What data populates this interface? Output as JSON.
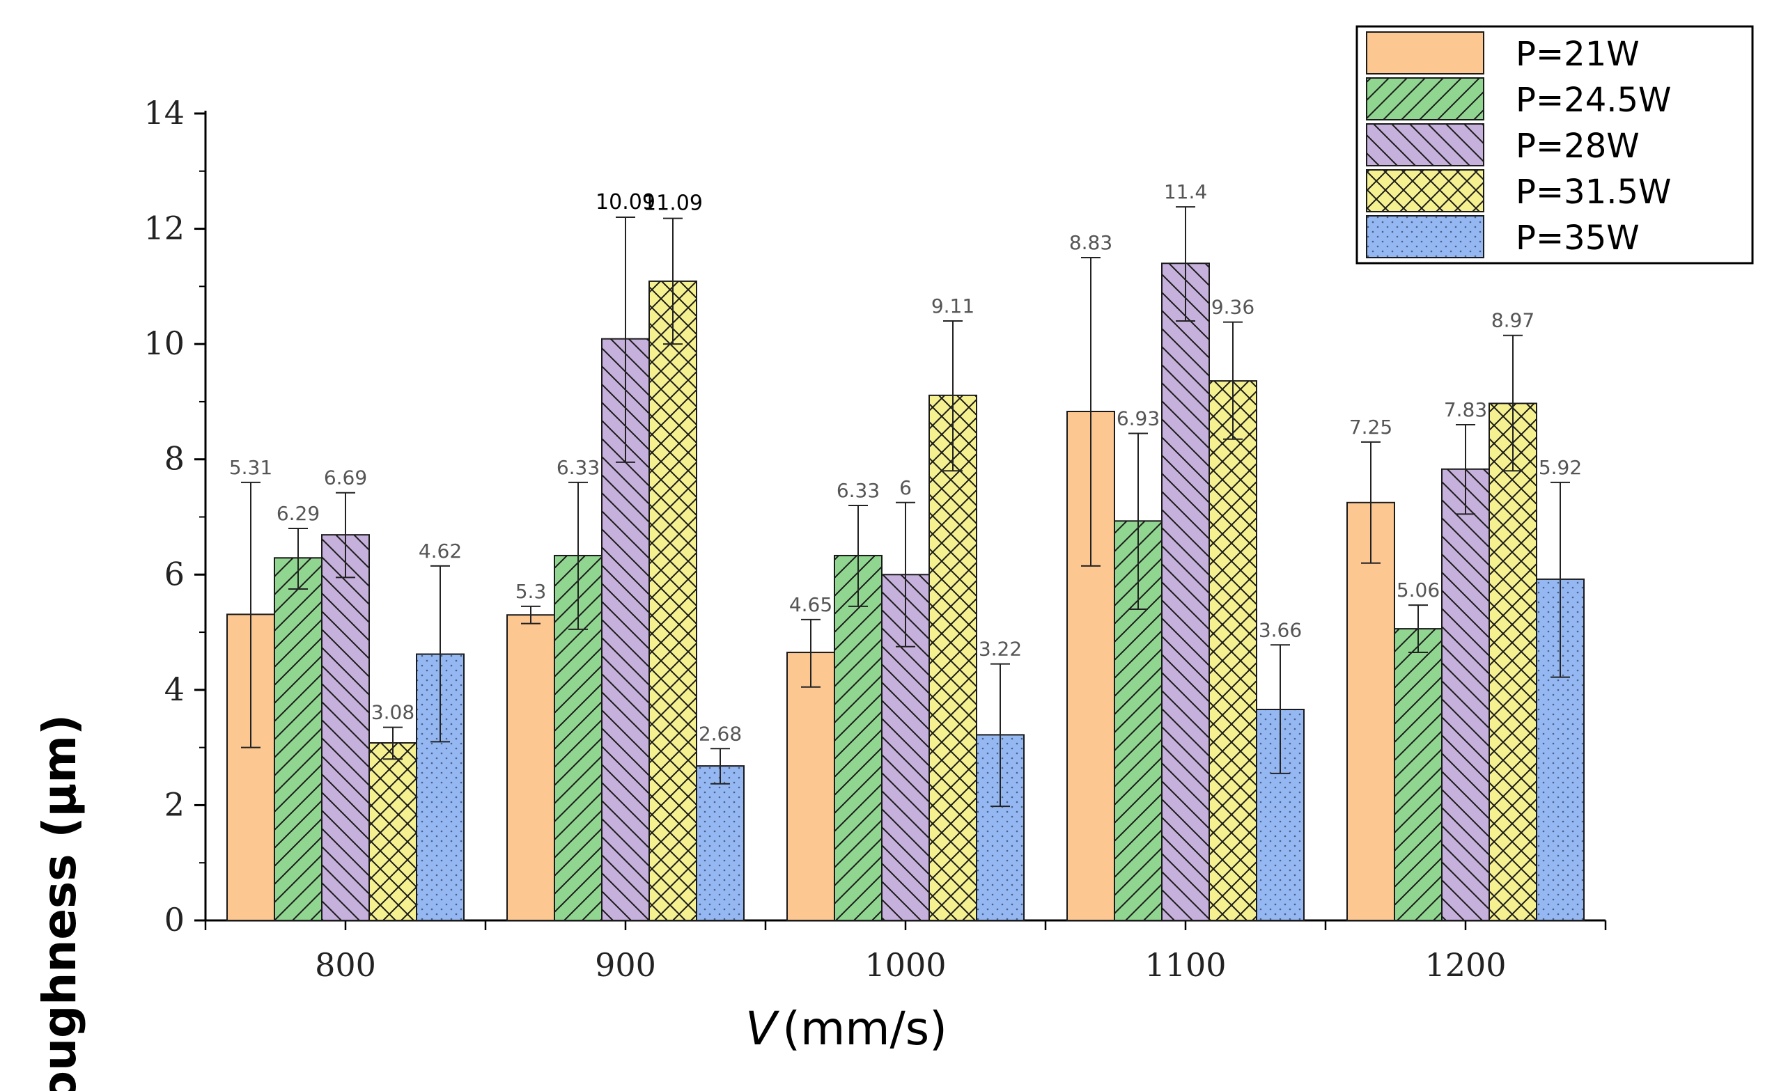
{
  "chart_data": {
    "type": "bar",
    "title": "",
    "xlabel_var": "V",
    "xlabel_unit": "(mm/s)",
    "ylabel": "Roughness (μm)",
    "ylim": [
      0,
      14
    ],
    "yticks": [
      "0",
      "2",
      "4",
      "6",
      "8",
      "10",
      "12",
      "14"
    ],
    "categories": [
      "800",
      "900",
      "1000",
      "1100",
      "1200"
    ],
    "grid": false,
    "legend_position": "top-right",
    "series": [
      {
        "name": "P=21W",
        "color": "#fcc790",
        "pattern": "none",
        "values": [
          5.31,
          5.3,
          4.65,
          8.83,
          7.25
        ],
        "labels": [
          "5.31",
          "5.3",
          "4.65",
          "8.83",
          "7.25"
        ],
        "error_low": [
          3.0,
          5.15,
          4.05,
          6.15,
          6.2
        ],
        "error_high": [
          7.6,
          5.45,
          5.22,
          11.5,
          8.3
        ]
      },
      {
        "name": "P=24.5W",
        "color": "#90d690",
        "pattern": "diag-right",
        "values": [
          6.29,
          6.33,
          6.33,
          6.93,
          5.06
        ],
        "labels": [
          "6.29",
          "6.33",
          "6.33",
          "6.93",
          "5.06"
        ],
        "error_low": [
          5.75,
          5.05,
          5.45,
          5.4,
          4.65
        ],
        "error_high": [
          6.8,
          7.6,
          7.2,
          8.45,
          5.47
        ]
      },
      {
        "name": "P=28W",
        "color": "#c6b0dc",
        "pattern": "diag-left",
        "values": [
          6.69,
          10.09,
          6.0,
          11.4,
          7.83
        ],
        "labels": [
          "6.69",
          "10.09",
          "6",
          "11.4",
          "7.83"
        ],
        "error_low": [
          5.95,
          7.95,
          4.75,
          10.4,
          7.05
        ],
        "error_high": [
          7.42,
          12.2,
          7.25,
          12.38,
          8.6
        ]
      },
      {
        "name": "P=31.5W",
        "color": "#f5f190",
        "pattern": "cross",
        "values": [
          3.08,
          11.09,
          9.11,
          9.36,
          8.97
        ],
        "labels": [
          "3.08",
          "11.09",
          "9.11",
          "9.36",
          "8.97"
        ],
        "error_low": [
          2.8,
          10.0,
          7.8,
          8.35,
          7.8
        ],
        "error_high": [
          3.35,
          12.18,
          10.4,
          10.38,
          10.15
        ]
      },
      {
        "name": "P=35W",
        "color": "#95b8f2",
        "pattern": "dots",
        "values": [
          4.62,
          2.68,
          3.22,
          3.66,
          5.92
        ],
        "labels": [
          "4.62",
          "2.68",
          "3.22",
          "3.66",
          "5.92"
        ],
        "error_low": [
          3.1,
          2.37,
          1.98,
          2.55,
          4.22
        ],
        "error_high": [
          6.15,
          2.98,
          4.45,
          4.78,
          7.6
        ]
      }
    ]
  }
}
